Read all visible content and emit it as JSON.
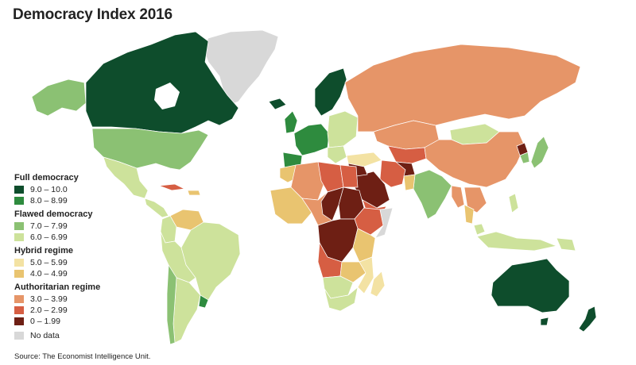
{
  "title": "Democracy Index 2016",
  "source": "Source: The Economist Intelligence Unit.",
  "legend": {
    "groups": [
      {
        "title": "Full democracy",
        "items": [
          {
            "label": "9.0 – 10.0",
            "color": "#0e4d2c"
          },
          {
            "label": "8.0 – 8.99",
            "color": "#2e8b3e"
          }
        ]
      },
      {
        "title": "Flawed democracy",
        "items": [
          {
            "label": "7.0 – 7.99",
            "color": "#8bc173"
          },
          {
            "label": "6.0 – 6.99",
            "color": "#cde29b"
          }
        ]
      },
      {
        "title": "Hybrid regime",
        "items": [
          {
            "label": "5.0 – 5.99",
            "color": "#f3e2a3"
          },
          {
            "label": "4.0 – 4.99",
            "color": "#e9c470"
          }
        ]
      },
      {
        "title": "Authoritarian regime",
        "items": [
          {
            "label": "3.0 – 3.99",
            "color": "#e69568"
          },
          {
            "label": "2.0 – 2.99",
            "color": "#d65e43"
          },
          {
            "label": "0 – 1.99",
            "color": "#6e1f14"
          }
        ]
      }
    ],
    "no_data": {
      "label": "No data",
      "color": "#d8d8d8"
    }
  }
}
